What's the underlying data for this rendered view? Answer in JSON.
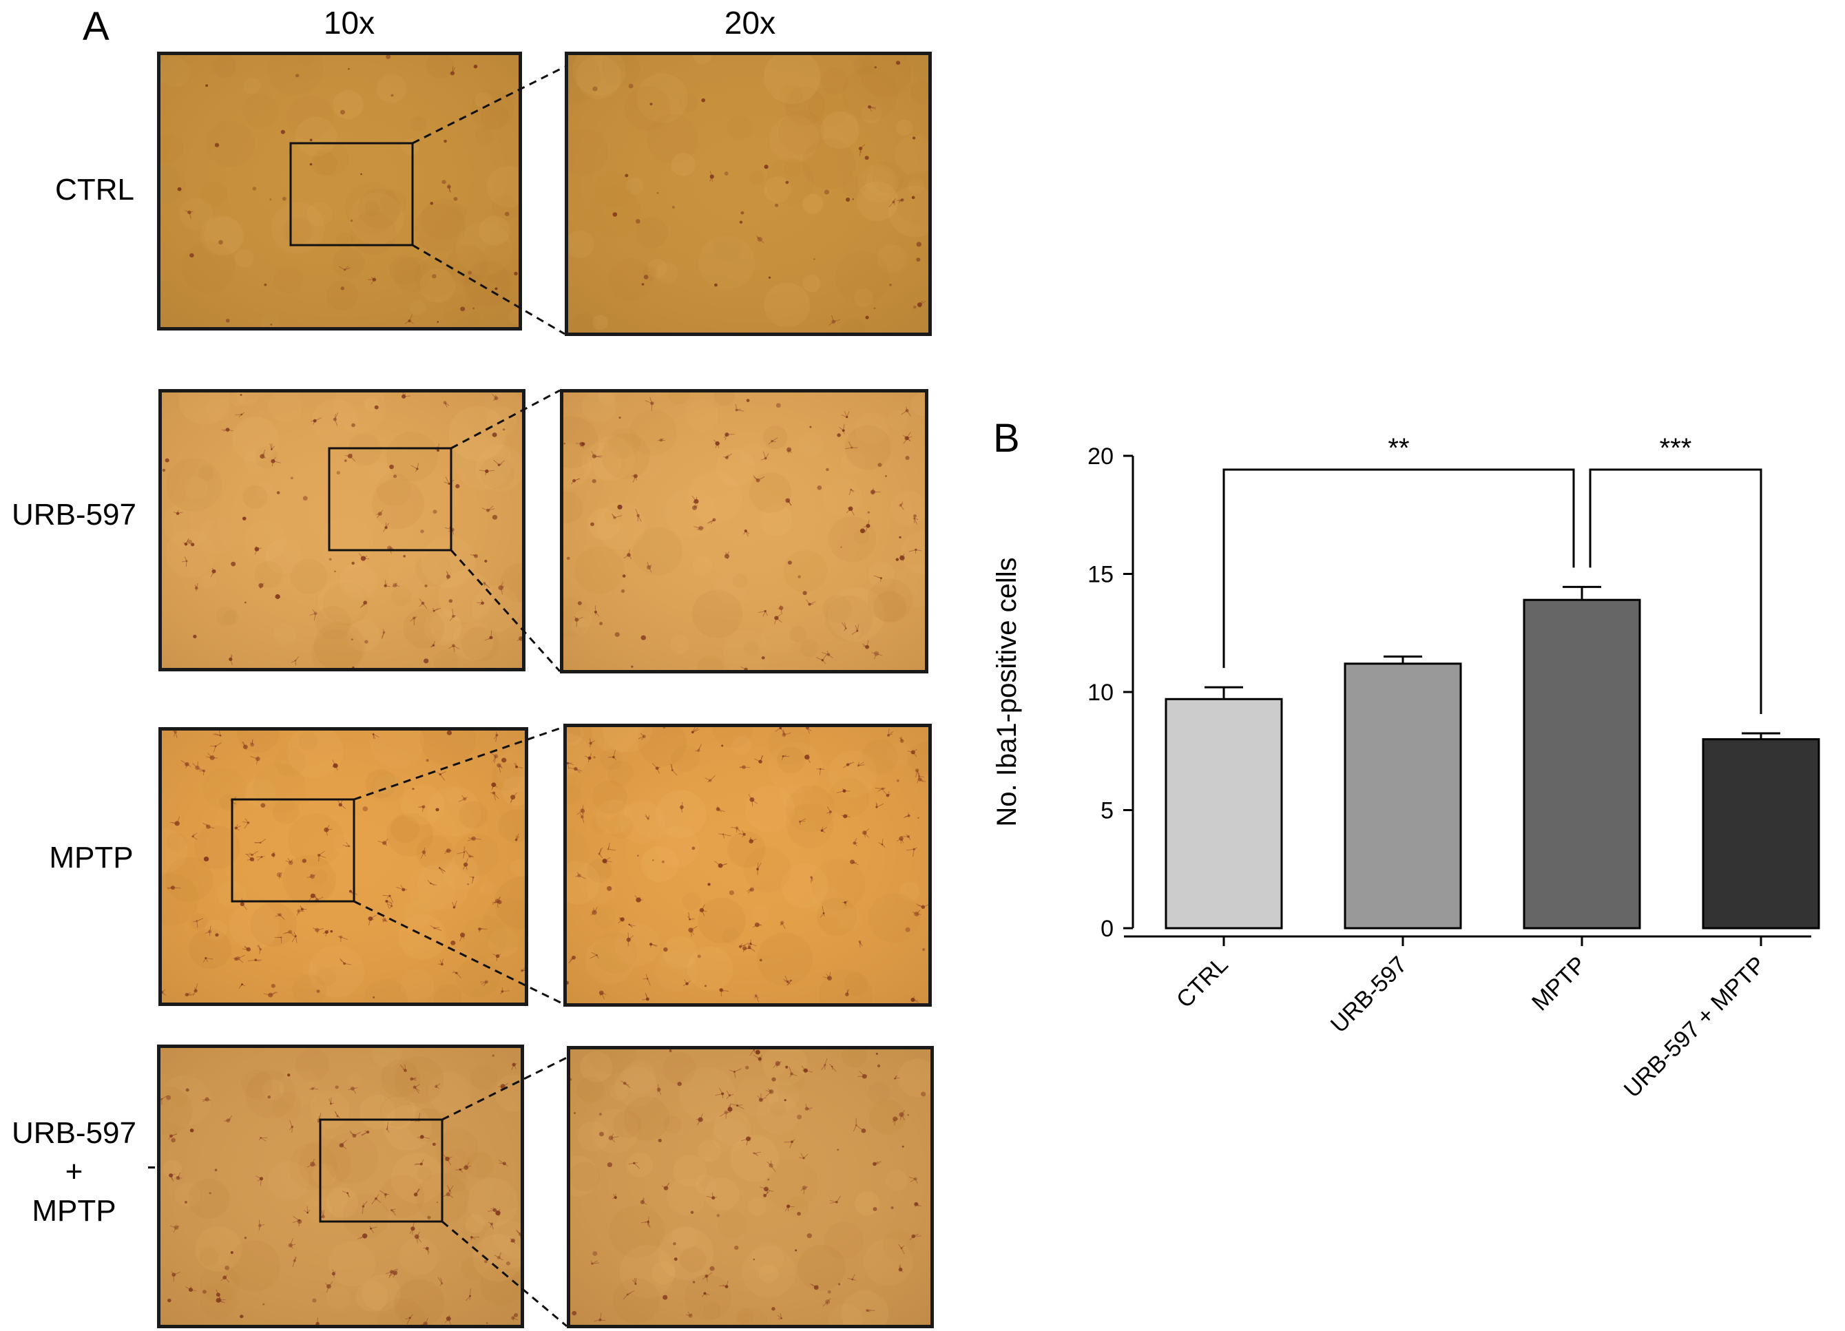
{
  "panel_a": {
    "letter": "A",
    "columns": [
      "10x",
      "20x"
    ],
    "rows": [
      {
        "label_lines": [
          "CTRL"
        ],
        "tone": "#c9923e",
        "stain_density": 0.15
      },
      {
        "label_lines": [
          "URB-597"
        ],
        "tone": "#e1a75a",
        "stain_density": 0.55
      },
      {
        "label_lines": [
          "MPTP"
        ],
        "tone": "#e6a24a",
        "stain_density": 0.8
      },
      {
        "label_lines": [
          "URB-597",
          "+",
          "MPTP"
        ],
        "tone": "#d39c55",
        "stain_density": 0.7
      }
    ]
  },
  "panel_b": {
    "letter": "B"
  },
  "chart_data": {
    "type": "bar",
    "categories": [
      "CTRL",
      "URB-597",
      "MPTP",
      "URB-597 + MPTP"
    ],
    "values": [
      9.7,
      11.2,
      13.9,
      8.0
    ],
    "errors": [
      0.5,
      0.3,
      0.55,
      0.25
    ],
    "colors": [
      "#cccccc",
      "#999999",
      "#666666",
      "#333333"
    ],
    "ylabel": "No. Iba1-positive cells",
    "xlabel": "",
    "ylim": [
      0,
      20
    ],
    "yticks": [
      0,
      5,
      10,
      15,
      20
    ],
    "significance": [
      {
        "from": "CTRL",
        "to": "MPTP",
        "label": "**"
      },
      {
        "from": "MPTP",
        "to": "URB-597 + MPTP",
        "label": "***"
      }
    ]
  }
}
